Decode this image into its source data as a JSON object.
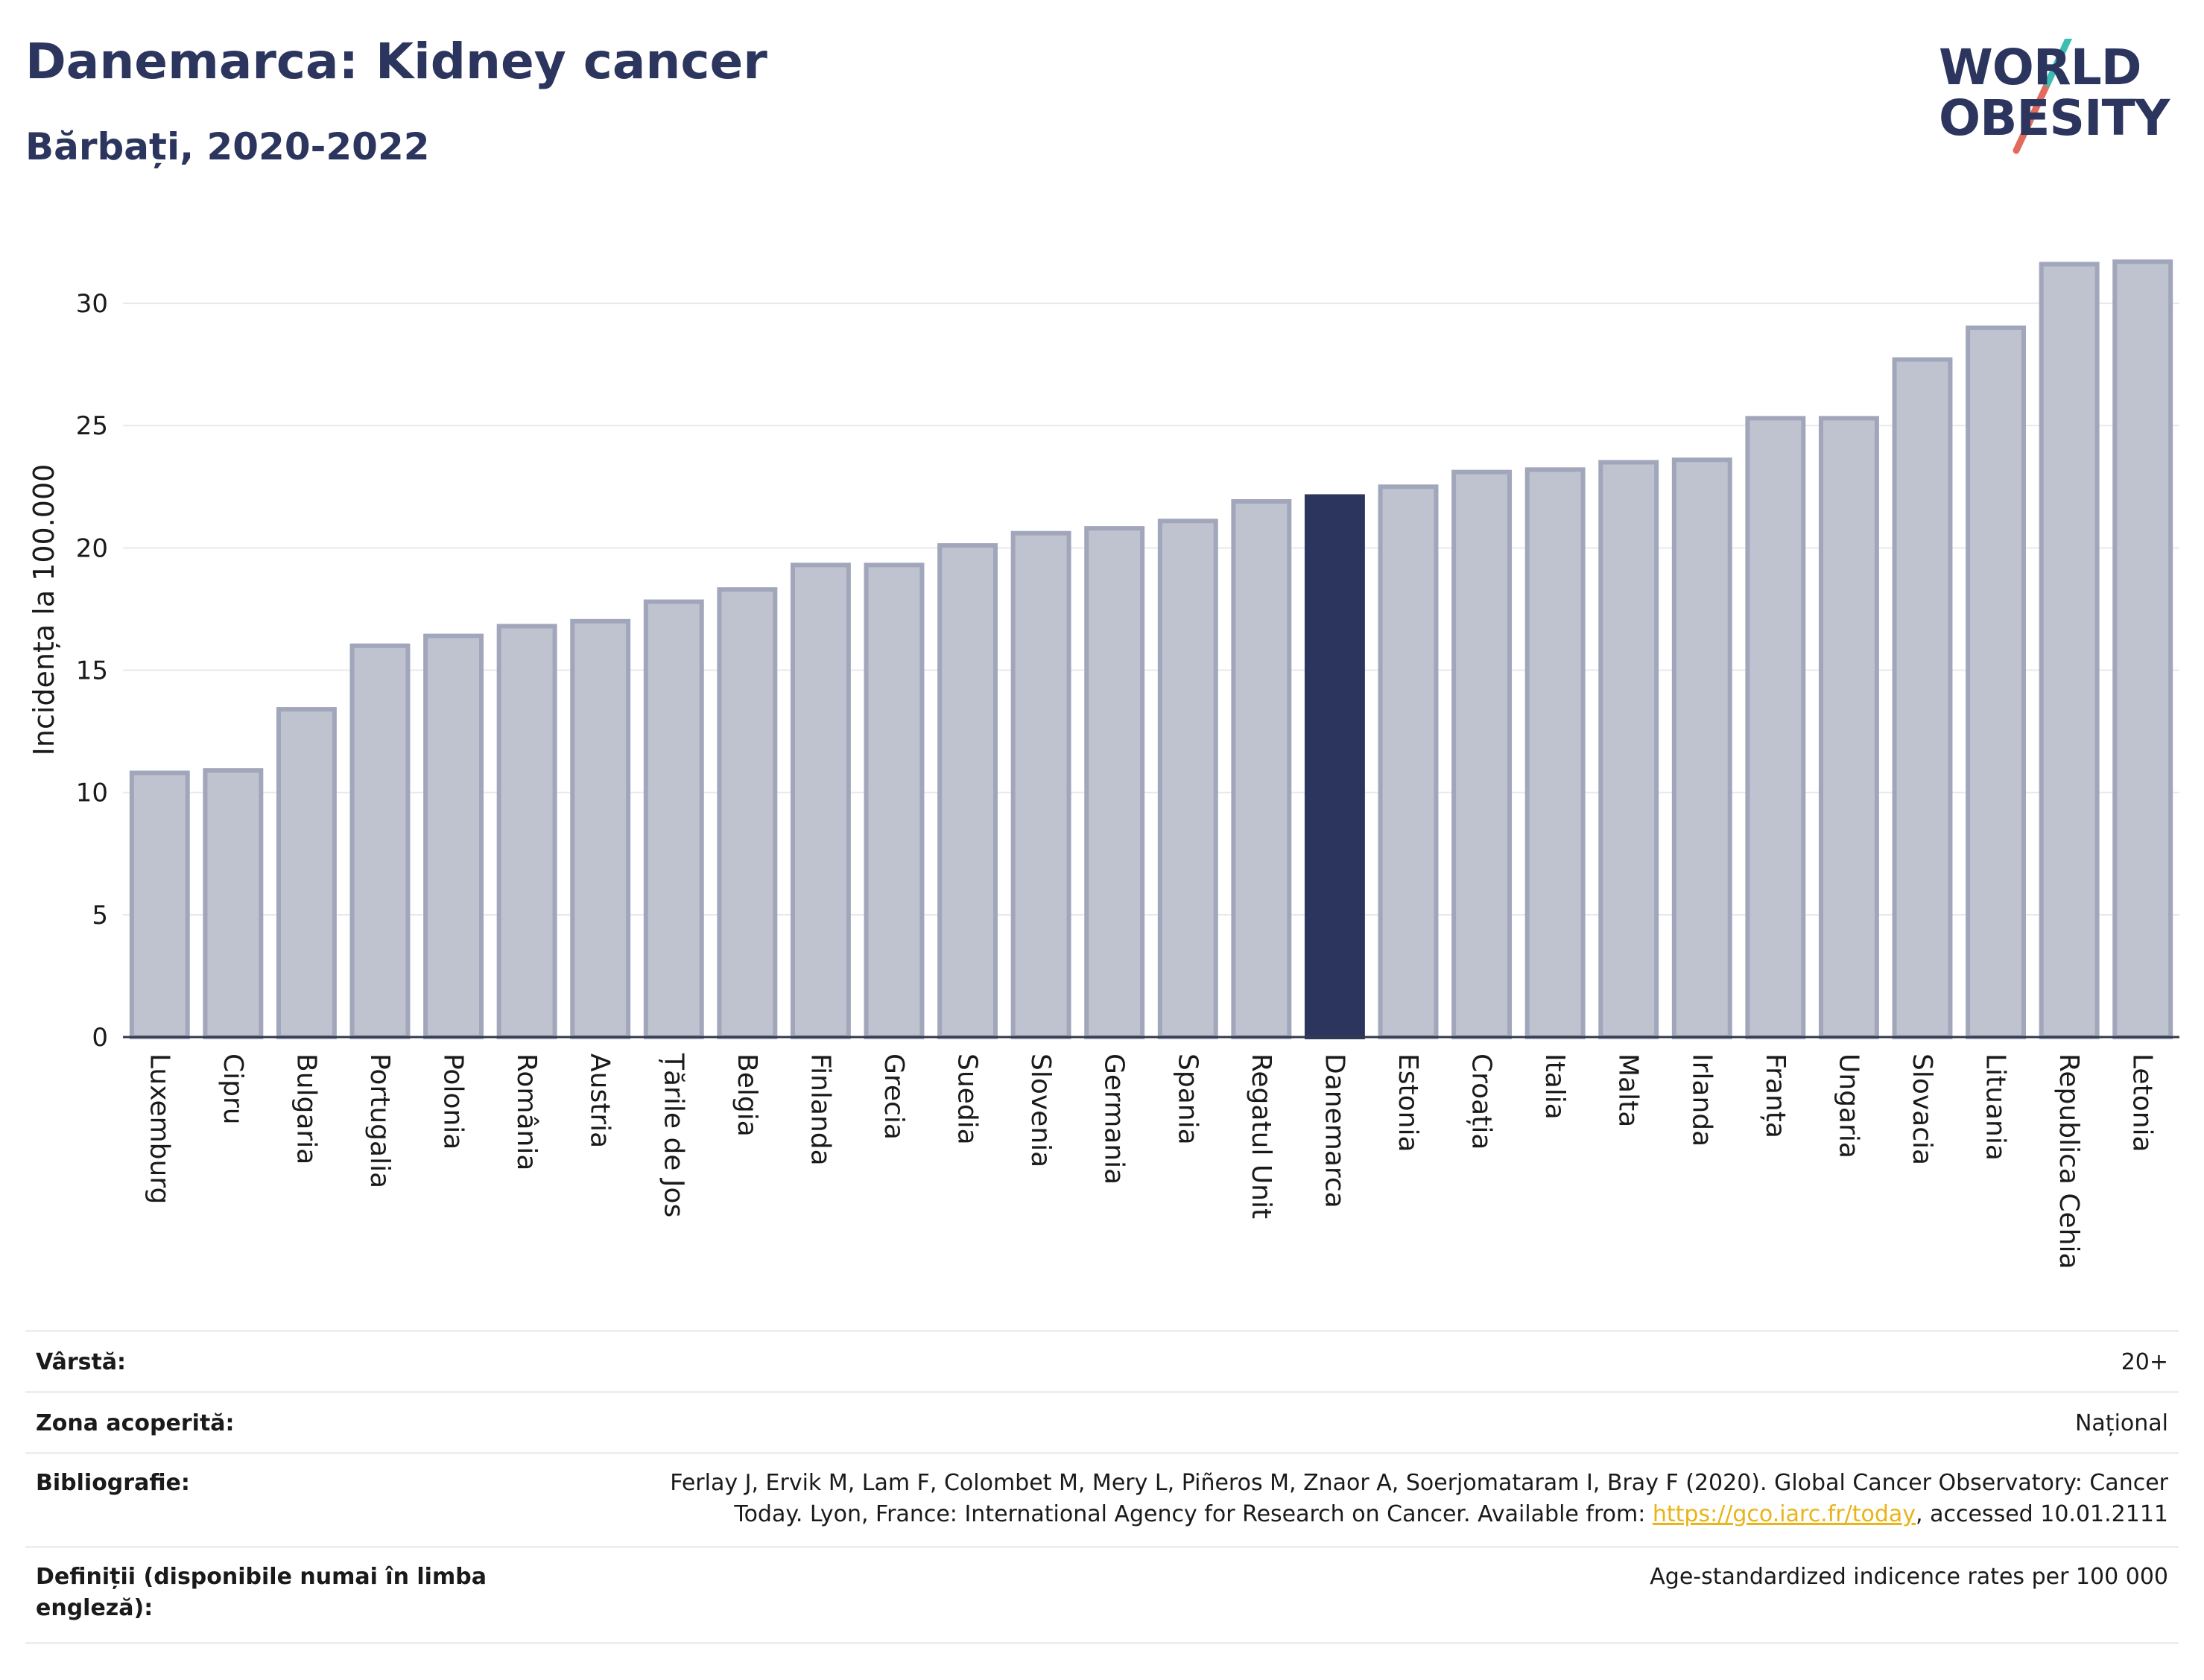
{
  "header": {
    "title": "Danemarca: Kidney cancer",
    "subtitle": "Bărbați, 2020-2022"
  },
  "logo": {
    "line1": "WORLD",
    "line2": "OBESITY"
  },
  "colors": {
    "bar": "#bfc2cf",
    "bar_border": "#a1a6bb",
    "highlight": "#2b355e",
    "grid": "#e8e9ee"
  },
  "chart_data": {
    "type": "bar",
    "ylabel": "Incidența la 100.000",
    "ylim": [
      0,
      32.5
    ],
    "yticks": [
      0,
      5,
      10,
      15,
      20,
      25,
      30
    ],
    "highlight": "Danemarca",
    "categories": [
      "Luxemburg",
      "Cipru",
      "Bulgaria",
      "Portugalia",
      "Polonia",
      "România",
      "Austria",
      "Țările de Jos",
      "Belgia",
      "Finlanda",
      "Grecia",
      "Suedia",
      "Slovenia",
      "Germania",
      "Spania",
      "Regatul Unit",
      "Danemarca",
      "Estonia",
      "Croația",
      "Italia",
      "Malta",
      "Irlanda",
      "Franța",
      "Ungaria",
      "Slovacia",
      "Lituania",
      "Republica Cehia",
      "Letonia"
    ],
    "values": [
      10.8,
      10.9,
      13.4,
      16.0,
      16.4,
      16.8,
      17.0,
      17.8,
      18.3,
      19.3,
      19.3,
      20.1,
      20.6,
      20.8,
      21.1,
      21.9,
      22.1,
      22.5,
      23.1,
      23.2,
      23.5,
      23.6,
      25.3,
      25.3,
      27.7,
      29.0,
      31.6,
      31.7
    ]
  },
  "meta": {
    "rows": [
      {
        "label": "Vârstă:",
        "value": "20+"
      },
      {
        "label": "Zona acoperită:",
        "value": "Național"
      },
      {
        "label": "Bibliografie:",
        "value_line1": "Ferlay J, Ervik M, Lam F, Colombet M, Mery L, Piñeros M, Znaor A, Soerjomataram I, Bray F (2020). Global Cancer Observatory: Cancer",
        "value_line2_pre": "Today. Lyon, France: International Agency for Research on Cancer. Available from: ",
        "link": "https://gco.iarc.fr/today",
        "value_line2_post": ", accessed 10.01.2111"
      },
      {
        "label": "Definiții (disponibile numai în limba engleză):",
        "value": "Age-standardized indicence rates per 100 000"
      }
    ]
  }
}
